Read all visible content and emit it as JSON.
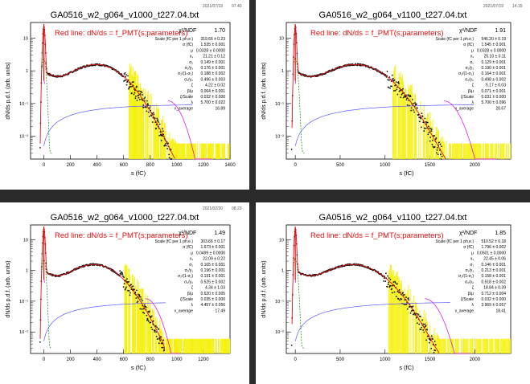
{
  "chart_data": [
    {
      "type": "line",
      "title": "GA0516_w2_g064_v1000_t227.04.txt",
      "date": "2021/07/19",
      "time": "07.40",
      "xlabel": "s (fC)",
      "ylabel": "dN/ds p.d.f. (arb. units)",
      "xlim": [
        -100,
        1400
      ],
      "ylim_log": [
        0.002,
        30
      ],
      "xticks": [
        "0",
        "200",
        "400",
        "600",
        "800",
        "1000",
        "1200",
        "1400"
      ],
      "yticks": [
        "10",
        "1",
        "10⁻¹",
        "10⁻²"
      ],
      "legend": "Red line: dN/ds = f_PMT(s;parameters)",
      "fit": {
        "chi2_label": "χ²/NDF",
        "chi2_value": "1.70",
        "rows": [
          {
            "label": "Scale (fC per 1 ph.e.)",
            "value": "319.66 ± 0.23"
          },
          {
            "label": "σ (fC)",
            "value": "1.535 ± 0.001"
          },
          {
            "label": "μ",
            "value": "0.0328 ± 0.0000"
          },
          {
            "label": "x₁",
            "value": "21.21 ± 0.12"
          },
          {
            "label": "σ₁",
            "value": "0.149 ± 0.001"
          },
          {
            "label": "σ₁/y₁",
            "value": "0.176 ± 0.001"
          },
          {
            "label": "σ₂/(1-σ₁)",
            "value": "0.188 ± 0.002"
          },
          {
            "label": "σ₂/y₂",
            "value": "0.496 ± 0.003"
          },
          {
            "label": "ζ",
            "value": "4.22 ± 0.02"
          },
          {
            "label": "β/μ",
            "value": "0.064 ± 0.001"
          },
          {
            "label": "ζ/Scale",
            "value": "0.032 ± 0.000"
          },
          {
            "label": "λ",
            "value": "5.700 ± 0.022"
          },
          {
            "label": "v_average",
            "value": "16.89"
          }
        ]
      },
      "curves": {
        "peak_s": 400,
        "peak_y": 1.5,
        "tail_end": 1100
      }
    },
    {
      "type": "line",
      "title": "GA0516_w2_g064_v1100_t227.04.txt",
      "date": "2021/07/19",
      "time": "14.15",
      "xlabel": "s (fC)",
      "ylabel": "dN/ds p.d.f. (arb. units)",
      "xlim": [
        -100,
        2400
      ],
      "ylim_log": [
        0.002,
        30
      ],
      "xticks": [
        "0",
        "500",
        "1000",
        "1500",
        "2000"
      ],
      "yticks": [
        "10",
        "1",
        "10⁻¹",
        "10⁻²"
      ],
      "legend": "Red line: dN/ds = f_PMT(s;parameters)",
      "fit": {
        "chi2_label": "χ²/NDF",
        "chi2_value": "1.91",
        "rows": [
          {
            "label": "Scale (fC per 1 ph.e.)",
            "value": "546.20 ± 0.19"
          },
          {
            "label": "σ (fC)",
            "value": "1.545 ± 0.001"
          },
          {
            "label": "μ",
            "value": "0.0328 ± 0.0000"
          },
          {
            "label": "x₁",
            "value": "25.10 ± 0.11"
          },
          {
            "label": "σ₁",
            "value": "0.129 ± 0.001"
          },
          {
            "label": "σ₁/y₁",
            "value": "0.190 ± 0.001"
          },
          {
            "label": "σ₂/(1-σ₁)",
            "value": "0.164 ± 0.001"
          },
          {
            "label": "σ₂/y₂",
            "value": "0.498 ± 0.002"
          },
          {
            "label": "ζ",
            "value": "5.17 ± 0.03"
          },
          {
            "label": "β/μ",
            "value": "0.071 ± 0.001"
          },
          {
            "label": "ζ/Scale",
            "value": "0.031 ± 0.000"
          },
          {
            "label": "λ",
            "value": "5.700 ± 0.096"
          },
          {
            "label": "v_average",
            "value": "20.67"
          }
        ]
      },
      "curves": {
        "peak_s": 680,
        "peak_y": 1.5,
        "tail_end": 1950
      }
    },
    {
      "type": "line",
      "title": "GA0516_w2_g064_v1000_t227.04.txt",
      "date": "2021/02/20",
      "time": "08.23",
      "xlabel": "s (fC)",
      "ylabel": "dN/ds p.d.f. (arb. units)",
      "xlim": [
        -100,
        1400
      ],
      "ylim_log": [
        0.002,
        30
      ],
      "xticks": [
        "0",
        "200",
        "400",
        "600",
        "800",
        "1000",
        "1200"
      ],
      "yticks": [
        "10",
        "1",
        "10⁻¹",
        "10⁻²"
      ],
      "legend": "Red line: dN/ds = f_PMT(s;parameters)",
      "fit": {
        "chi2_label": "χ²/NDF",
        "chi2_value": "1.49",
        "rows": [
          {
            "label": "Scale (fC per 1 ph.e.)",
            "value": "303.66 ± 0.17"
          },
          {
            "label": "σ (fC)",
            "value": "1.673 ± 0.001"
          },
          {
            "label": "μ",
            "value": "0.0499 ± 0.0000"
          },
          {
            "label": "x₁",
            "value": "22.09 ± 0.22"
          },
          {
            "label": "σ₁",
            "value": "0.165 ± 0.001"
          },
          {
            "label": "σ₁/y₁",
            "value": "0.196 ± 0.001"
          },
          {
            "label": "σ₂/(1-σ₁)",
            "value": "0.191 ± 0.001"
          },
          {
            "label": "σ₂/y₂",
            "value": "0.525 ± 0.002"
          },
          {
            "label": "ζ",
            "value": "4.34 ± 1.03"
          },
          {
            "label": "β/μ",
            "value": "0.620 ± 0.005"
          },
          {
            "label": "ζ/Scale",
            "value": "0.035 ± 0.000"
          },
          {
            "label": "λ",
            "value": "4.457 ± 0.056"
          },
          {
            "label": "v_average",
            "value": "17.49"
          }
        ]
      },
      "curves": {
        "peak_s": 380,
        "peak_y": 1.5,
        "tail_end": 900
      }
    },
    {
      "type": "line",
      "title": "GA0516_w2_g064_v1100_t227.04.txt",
      "date": "",
      "time": "",
      "xlabel": "s (fC)",
      "ylabel": "dN/ds p.d.f. (arb. units)",
      "xlim": [
        -100,
        2400
      ],
      "ylim_log": [
        0.002,
        30
      ],
      "xticks": [
        "0",
        "500",
        "1000",
        "1500",
        "2000"
      ],
      "yticks": [
        "10",
        "1",
        "10⁻¹",
        "10⁻²"
      ],
      "legend": "Red line: dN/ds = f_PMT(s;parameters)",
      "fit": {
        "chi2_label": "χ²/NDF",
        "chi2_value": "1.85",
        "rows": [
          {
            "label": "Scale (fC per 1 ph.e.)",
            "value": "510.52 ± 0.18"
          },
          {
            "label": "σ (fC)",
            "value": "1.796 ± 0.002"
          },
          {
            "label": "μ",
            "value": "0.0501 ± 0.0000"
          },
          {
            "label": "x₁",
            "value": "22.45 ± 0.06"
          },
          {
            "label": "σ₁",
            "value": "0.146 ± 0.001"
          },
          {
            "label": "σ₁/y₁",
            "value": "0.213 ± 0.001"
          },
          {
            "label": "σ₂/(1-σ₁)",
            "value": "0.158 ± 0.001"
          },
          {
            "label": "σ₂/y₂",
            "value": "0.518 ± 0.002"
          },
          {
            "label": "ζ",
            "value": "18.84 ± 0.39"
          },
          {
            "label": "β/μ",
            "value": "0.712 ± 0.004"
          },
          {
            "label": "ζ/Scale",
            "value": "0.032 ± 0.000"
          },
          {
            "label": "λ",
            "value": "3.969 ± 0.057"
          },
          {
            "label": "v_average",
            "value": "18.41"
          }
        ]
      },
      "curves": {
        "peak_s": 650,
        "peak_y": 1.5,
        "tail_end": 1700
      }
    }
  ]
}
